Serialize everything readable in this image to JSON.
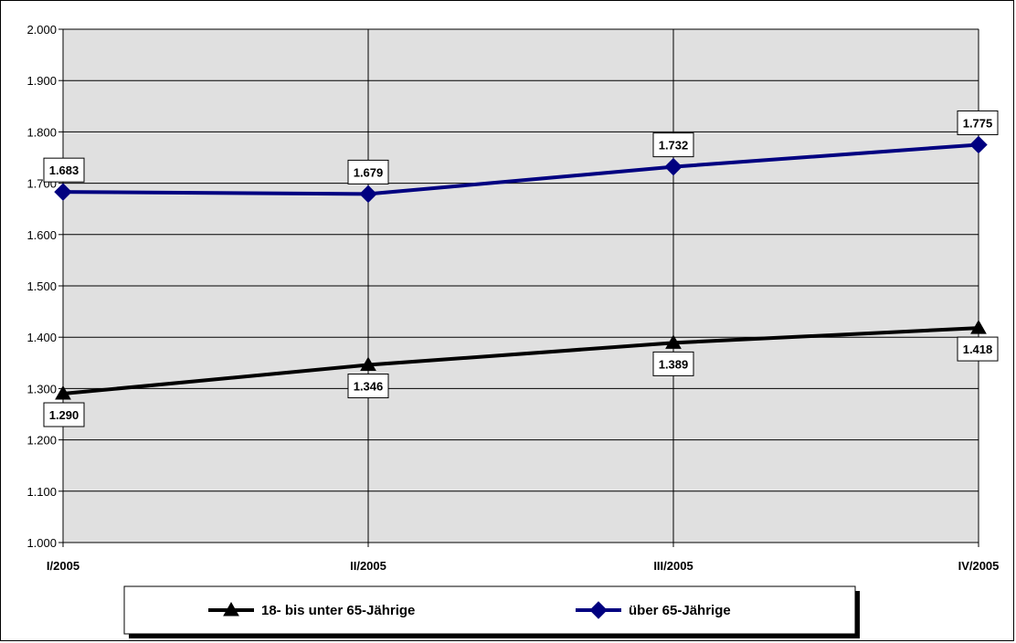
{
  "chart_data": {
    "type": "line",
    "categories": [
      "I/2005",
      "II/2005",
      "III/2005",
      "IV/2005"
    ],
    "yticks": [
      "1.000",
      "1.100",
      "1.200",
      "1.300",
      "1.400",
      "1.500",
      "1.600",
      "1.700",
      "1.800",
      "1.900",
      "2.000"
    ],
    "ylim": [
      1000,
      2000
    ],
    "ystep": 100,
    "grid": true,
    "legend_position": "bottom",
    "plot_background": "#e0e0e0",
    "series": [
      {
        "name": "18- bis unter 65-Jährige",
        "values": [
          1290,
          1346,
          1389,
          1418
        ],
        "labels": [
          "1.290",
          "1.346",
          "1.389",
          "1.418"
        ],
        "color": "#000000",
        "marker": "triangle",
        "label_position": "below"
      },
      {
        "name": "über 65-Jährige",
        "values": [
          1683,
          1679,
          1732,
          1775
        ],
        "labels": [
          "1.683",
          "1.679",
          "1.732",
          "1.775"
        ],
        "color": "#000080",
        "marker": "diamond",
        "label_position": "above"
      }
    ]
  }
}
